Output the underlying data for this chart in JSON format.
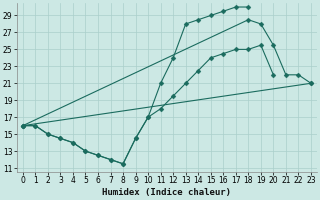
{
  "xlabel": "Humidex (Indice chaleur)",
  "bg_color": "#cce8e4",
  "grid_color": "#aacfcb",
  "line_color": "#1a6b5e",
  "xlim": [
    -0.5,
    23.5
  ],
  "ylim": [
    10.5,
    30.5
  ],
  "yticks": [
    11,
    13,
    15,
    17,
    19,
    21,
    23,
    25,
    27,
    29
  ],
  "xticks": [
    0,
    1,
    2,
    3,
    4,
    5,
    6,
    7,
    8,
    9,
    10,
    11,
    12,
    13,
    14,
    15,
    16,
    17,
    18,
    19,
    20,
    21,
    22,
    23
  ],
  "series": [
    {
      "x": [
        0,
        1,
        2,
        3,
        4,
        5,
        6,
        7,
        8,
        9,
        10,
        11,
        12,
        13,
        14,
        15,
        16,
        17,
        18
      ],
      "y": [
        16,
        16,
        15,
        14.5,
        14,
        13,
        12.5,
        12,
        11.5,
        14.5,
        17,
        21,
        24,
        28,
        28.5,
        29,
        29.5,
        30,
        30
      ]
    },
    {
      "x": [
        0,
        18,
        19,
        20,
        21,
        22,
        23
      ],
      "y": [
        16,
        28.5,
        28,
        25.5,
        22,
        22,
        21
      ]
    },
    {
      "x": [
        0,
        23
      ],
      "y": [
        16,
        21
      ]
    },
    {
      "x": [
        0,
        1,
        2,
        3,
        4,
        5,
        6,
        7,
        8,
        9,
        10,
        11,
        12,
        13,
        14,
        15,
        16,
        17,
        18,
        19,
        20
      ],
      "y": [
        16,
        16,
        15,
        14.5,
        14,
        13,
        12.5,
        12,
        11.5,
        14.5,
        17,
        18,
        19.5,
        21,
        22.5,
        24,
        24.5,
        25,
        25,
        25.5,
        22
      ]
    }
  ]
}
